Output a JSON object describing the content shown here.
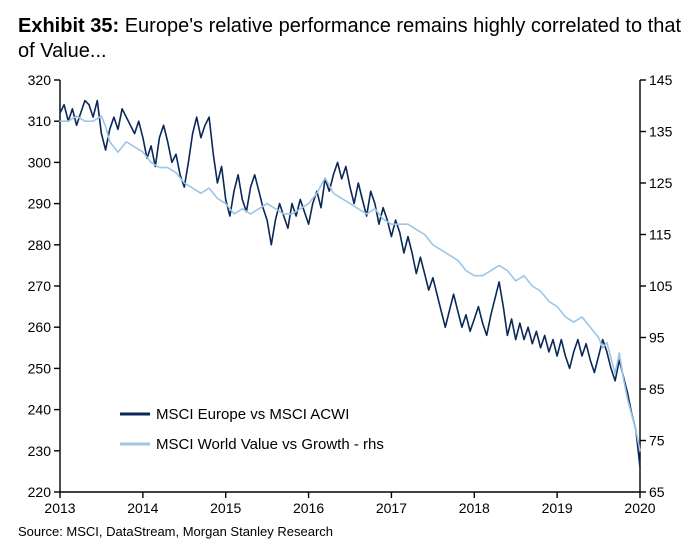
{
  "exhibit_label": "Exhibit 35:",
  "title_text": "Europe's relative performance remains highly correlated to that of Value...",
  "source_text": "Source: MSCI, DataStream, Morgan Stanley Research",
  "chart": {
    "type": "line",
    "background_color": "#ffffff",
    "axis_color": "#000000",
    "tick_color": "#000000",
    "tick_fontsize": 14,
    "line_width": 1.6,
    "x": {
      "min": 2013,
      "max": 2020,
      "ticks": [
        2013,
        2014,
        2015,
        2016,
        2017,
        2018,
        2019,
        2020
      ]
    },
    "y_left": {
      "min": 220,
      "max": 320,
      "ticks": [
        220,
        230,
        240,
        250,
        260,
        270,
        280,
        290,
        300,
        310,
        320
      ]
    },
    "y_right": {
      "min": 65,
      "max": 145,
      "ticks": [
        65,
        75,
        85,
        95,
        105,
        115,
        125,
        135,
        145
      ]
    },
    "legend": {
      "fontsize": 15,
      "items": [
        {
          "label": "MSCI Europe vs MSCI ACWI",
          "color": "#0a2858"
        },
        {
          "label": "MSCI World Value vs Growth - rhs",
          "color": "#9dc6e6"
        }
      ]
    },
    "series": [
      {
        "name": "MSCI Europe vs MSCI ACWI",
        "axis": "left",
        "color": "#0a2858",
        "points": [
          [
            2013.0,
            312
          ],
          [
            2013.05,
            314
          ],
          [
            2013.1,
            310
          ],
          [
            2013.15,
            313
          ],
          [
            2013.2,
            309
          ],
          [
            2013.25,
            312
          ],
          [
            2013.3,
            315
          ],
          [
            2013.35,
            314
          ],
          [
            2013.4,
            311
          ],
          [
            2013.45,
            315
          ],
          [
            2013.5,
            307
          ],
          [
            2013.55,
            303
          ],
          [
            2013.6,
            308
          ],
          [
            2013.65,
            311
          ],
          [
            2013.7,
            308
          ],
          [
            2013.75,
            313
          ],
          [
            2013.8,
            311
          ],
          [
            2013.85,
            309
          ],
          [
            2013.9,
            307
          ],
          [
            2013.95,
            310
          ],
          [
            2014.0,
            306
          ],
          [
            2014.05,
            301
          ],
          [
            2014.1,
            304
          ],
          [
            2014.15,
            299
          ],
          [
            2014.2,
            306
          ],
          [
            2014.25,
            309
          ],
          [
            2014.3,
            305
          ],
          [
            2014.35,
            300
          ],
          [
            2014.4,
            302
          ],
          [
            2014.45,
            297
          ],
          [
            2014.5,
            294
          ],
          [
            2014.55,
            300
          ],
          [
            2014.6,
            307
          ],
          [
            2014.65,
            311
          ],
          [
            2014.7,
            306
          ],
          [
            2014.75,
            309
          ],
          [
            2014.8,
            311
          ],
          [
            2014.85,
            302
          ],
          [
            2014.9,
            295
          ],
          [
            2014.95,
            299
          ],
          [
            2015.0,
            291
          ],
          [
            2015.05,
            287
          ],
          [
            2015.1,
            293
          ],
          [
            2015.15,
            297
          ],
          [
            2015.2,
            291
          ],
          [
            2015.25,
            288
          ],
          [
            2015.3,
            294
          ],
          [
            2015.35,
            297
          ],
          [
            2015.4,
            293
          ],
          [
            2015.45,
            289
          ],
          [
            2015.5,
            286
          ],
          [
            2015.55,
            280
          ],
          [
            2015.6,
            286
          ],
          [
            2015.65,
            290
          ],
          [
            2015.7,
            287
          ],
          [
            2015.75,
            284
          ],
          [
            2015.8,
            290
          ],
          [
            2015.85,
            287
          ],
          [
            2015.9,
            291
          ],
          [
            2015.95,
            288
          ],
          [
            2016.0,
            285
          ],
          [
            2016.05,
            290
          ],
          [
            2016.1,
            293
          ],
          [
            2016.15,
            289
          ],
          [
            2016.2,
            296
          ],
          [
            2016.25,
            293
          ],
          [
            2016.3,
            297
          ],
          [
            2016.35,
            300
          ],
          [
            2016.4,
            296
          ],
          [
            2016.45,
            299
          ],
          [
            2016.5,
            294
          ],
          [
            2016.55,
            290
          ],
          [
            2016.6,
            295
          ],
          [
            2016.65,
            291
          ],
          [
            2016.7,
            287
          ],
          [
            2016.75,
            293
          ],
          [
            2016.8,
            290
          ],
          [
            2016.85,
            285
          ],
          [
            2016.9,
            289
          ],
          [
            2016.95,
            286
          ],
          [
            2017.0,
            282
          ],
          [
            2017.05,
            286
          ],
          [
            2017.1,
            283
          ],
          [
            2017.15,
            278
          ],
          [
            2017.2,
            282
          ],
          [
            2017.25,
            278
          ],
          [
            2017.3,
            273
          ],
          [
            2017.35,
            277
          ],
          [
            2017.4,
            273
          ],
          [
            2017.45,
            269
          ],
          [
            2017.5,
            272
          ],
          [
            2017.55,
            268
          ],
          [
            2017.6,
            264
          ],
          [
            2017.65,
            260
          ],
          [
            2017.7,
            264
          ],
          [
            2017.75,
            268
          ],
          [
            2017.8,
            264
          ],
          [
            2017.85,
            260
          ],
          [
            2017.9,
            263
          ],
          [
            2017.95,
            259
          ],
          [
            2018.0,
            262
          ],
          [
            2018.05,
            265
          ],
          [
            2018.1,
            261
          ],
          [
            2018.15,
            258
          ],
          [
            2018.2,
            263
          ],
          [
            2018.25,
            267
          ],
          [
            2018.3,
            271
          ],
          [
            2018.35,
            265
          ],
          [
            2018.4,
            258
          ],
          [
            2018.45,
            262
          ],
          [
            2018.5,
            257
          ],
          [
            2018.55,
            261
          ],
          [
            2018.6,
            257
          ],
          [
            2018.65,
            260
          ],
          [
            2018.7,
            256
          ],
          [
            2018.75,
            259
          ],
          [
            2018.8,
            255
          ],
          [
            2018.85,
            258
          ],
          [
            2018.9,
            254
          ],
          [
            2018.95,
            257
          ],
          [
            2019.0,
            253
          ],
          [
            2019.05,
            257
          ],
          [
            2019.1,
            253
          ],
          [
            2019.15,
            250
          ],
          [
            2019.2,
            254
          ],
          [
            2019.25,
            257
          ],
          [
            2019.3,
            253
          ],
          [
            2019.35,
            256
          ],
          [
            2019.4,
            252
          ],
          [
            2019.45,
            249
          ],
          [
            2019.5,
            253
          ],
          [
            2019.55,
            257
          ],
          [
            2019.6,
            254
          ],
          [
            2019.65,
            250
          ],
          [
            2019.7,
            247
          ],
          [
            2019.75,
            252
          ],
          [
            2019.8,
            248
          ],
          [
            2019.85,
            244
          ],
          [
            2019.9,
            239
          ],
          [
            2019.95,
            235
          ],
          [
            2020.0,
            226
          ]
        ]
      },
      {
        "name": "MSCI World Value vs Growth - rhs",
        "axis": "right",
        "color": "#9dc6e6",
        "points": [
          [
            2013.0,
            137
          ],
          [
            2013.1,
            137
          ],
          [
            2013.2,
            138
          ],
          [
            2013.3,
            137
          ],
          [
            2013.4,
            137
          ],
          [
            2013.5,
            138
          ],
          [
            2013.55,
            136
          ],
          [
            2013.6,
            133
          ],
          [
            2013.7,
            131
          ],
          [
            2013.8,
            133
          ],
          [
            2013.9,
            132
          ],
          [
            2014.0,
            131
          ],
          [
            2014.1,
            129
          ],
          [
            2014.2,
            128
          ],
          [
            2014.3,
            128
          ],
          [
            2014.4,
            127
          ],
          [
            2014.5,
            125
          ],
          [
            2014.6,
            124
          ],
          [
            2014.7,
            123
          ],
          [
            2014.8,
            124
          ],
          [
            2014.9,
            122
          ],
          [
            2015.0,
            121
          ],
          [
            2015.1,
            119
          ],
          [
            2015.2,
            120
          ],
          [
            2015.3,
            119
          ],
          [
            2015.4,
            120
          ],
          [
            2015.5,
            121
          ],
          [
            2015.6,
            120
          ],
          [
            2015.7,
            119
          ],
          [
            2015.8,
            119
          ],
          [
            2015.9,
            120
          ],
          [
            2016.0,
            121
          ],
          [
            2016.1,
            123
          ],
          [
            2016.2,
            126
          ],
          [
            2016.3,
            123
          ],
          [
            2016.4,
            122
          ],
          [
            2016.5,
            121
          ],
          [
            2016.6,
            120
          ],
          [
            2016.7,
            119
          ],
          [
            2016.8,
            120
          ],
          [
            2016.9,
            118
          ],
          [
            2017.0,
            117
          ],
          [
            2017.1,
            117
          ],
          [
            2017.2,
            117
          ],
          [
            2017.3,
            116
          ],
          [
            2017.4,
            115
          ],
          [
            2017.5,
            113
          ],
          [
            2017.6,
            112
          ],
          [
            2017.7,
            111
          ],
          [
            2017.8,
            110
          ],
          [
            2017.9,
            108
          ],
          [
            2018.0,
            107
          ],
          [
            2018.1,
            107
          ],
          [
            2018.2,
            108
          ],
          [
            2018.3,
            109
          ],
          [
            2018.4,
            108
          ],
          [
            2018.5,
            106
          ],
          [
            2018.6,
            107
          ],
          [
            2018.7,
            105
          ],
          [
            2018.8,
            104
          ],
          [
            2018.9,
            102
          ],
          [
            2019.0,
            101
          ],
          [
            2019.1,
            99
          ],
          [
            2019.2,
            98
          ],
          [
            2019.3,
            99
          ],
          [
            2019.4,
            97
          ],
          [
            2019.5,
            95
          ],
          [
            2019.55,
            93
          ],
          [
            2019.6,
            94
          ],
          [
            2019.65,
            91
          ],
          [
            2019.7,
            88
          ],
          [
            2019.75,
            92
          ],
          [
            2019.8,
            87
          ],
          [
            2019.85,
            83
          ],
          [
            2019.9,
            80
          ],
          [
            2019.95,
            77
          ],
          [
            2020.0,
            73
          ]
        ]
      }
    ]
  }
}
